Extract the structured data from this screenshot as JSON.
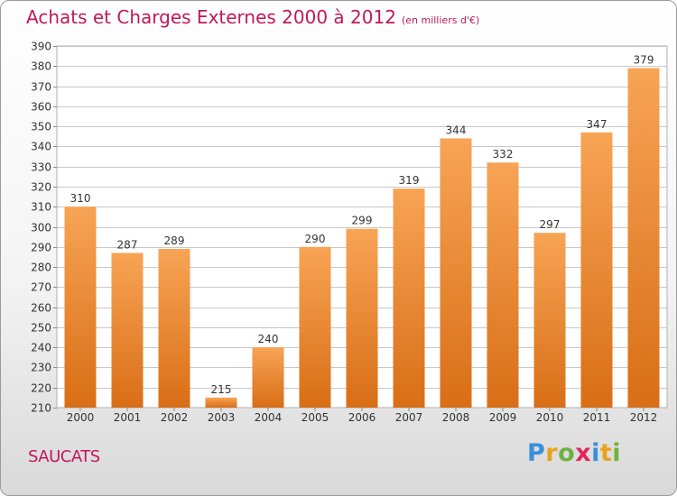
{
  "title": "Achats et Charges Externes 2000 à 2012",
  "subtitle": "(en milliers d'€)",
  "commune": "SAUCATS",
  "logo": {
    "letters": [
      "P",
      "r",
      "o",
      "x",
      "i",
      "t",
      "i"
    ],
    "colors": [
      "#3a8fd8",
      "#e8a31c",
      "#6db33f",
      "#e3265a",
      "#3a8fd8",
      "#e8a31c",
      "#6db33f"
    ]
  },
  "colors": {
    "bar_top": "#f7a455",
    "bar_bottom": "#d96e16",
    "text": "#333333",
    "grid": "#c8c8c8",
    "accent": "#c0185a"
  },
  "chart_data": {
    "type": "bar",
    "categories": [
      "2000",
      "2001",
      "2002",
      "2003",
      "2004",
      "2005",
      "2006",
      "2007",
      "2008",
      "2009",
      "2010",
      "2011",
      "2012"
    ],
    "values": [
      310,
      287,
      289,
      215,
      240,
      290,
      299,
      319,
      344,
      332,
      297,
      347,
      379
    ],
    "ylim": [
      210,
      390
    ],
    "yticks": [
      210,
      220,
      230,
      240,
      250,
      260,
      270,
      280,
      290,
      300,
      310,
      320,
      330,
      340,
      350,
      360,
      370,
      380,
      390
    ],
    "grid": true,
    "data_labels": true
  }
}
